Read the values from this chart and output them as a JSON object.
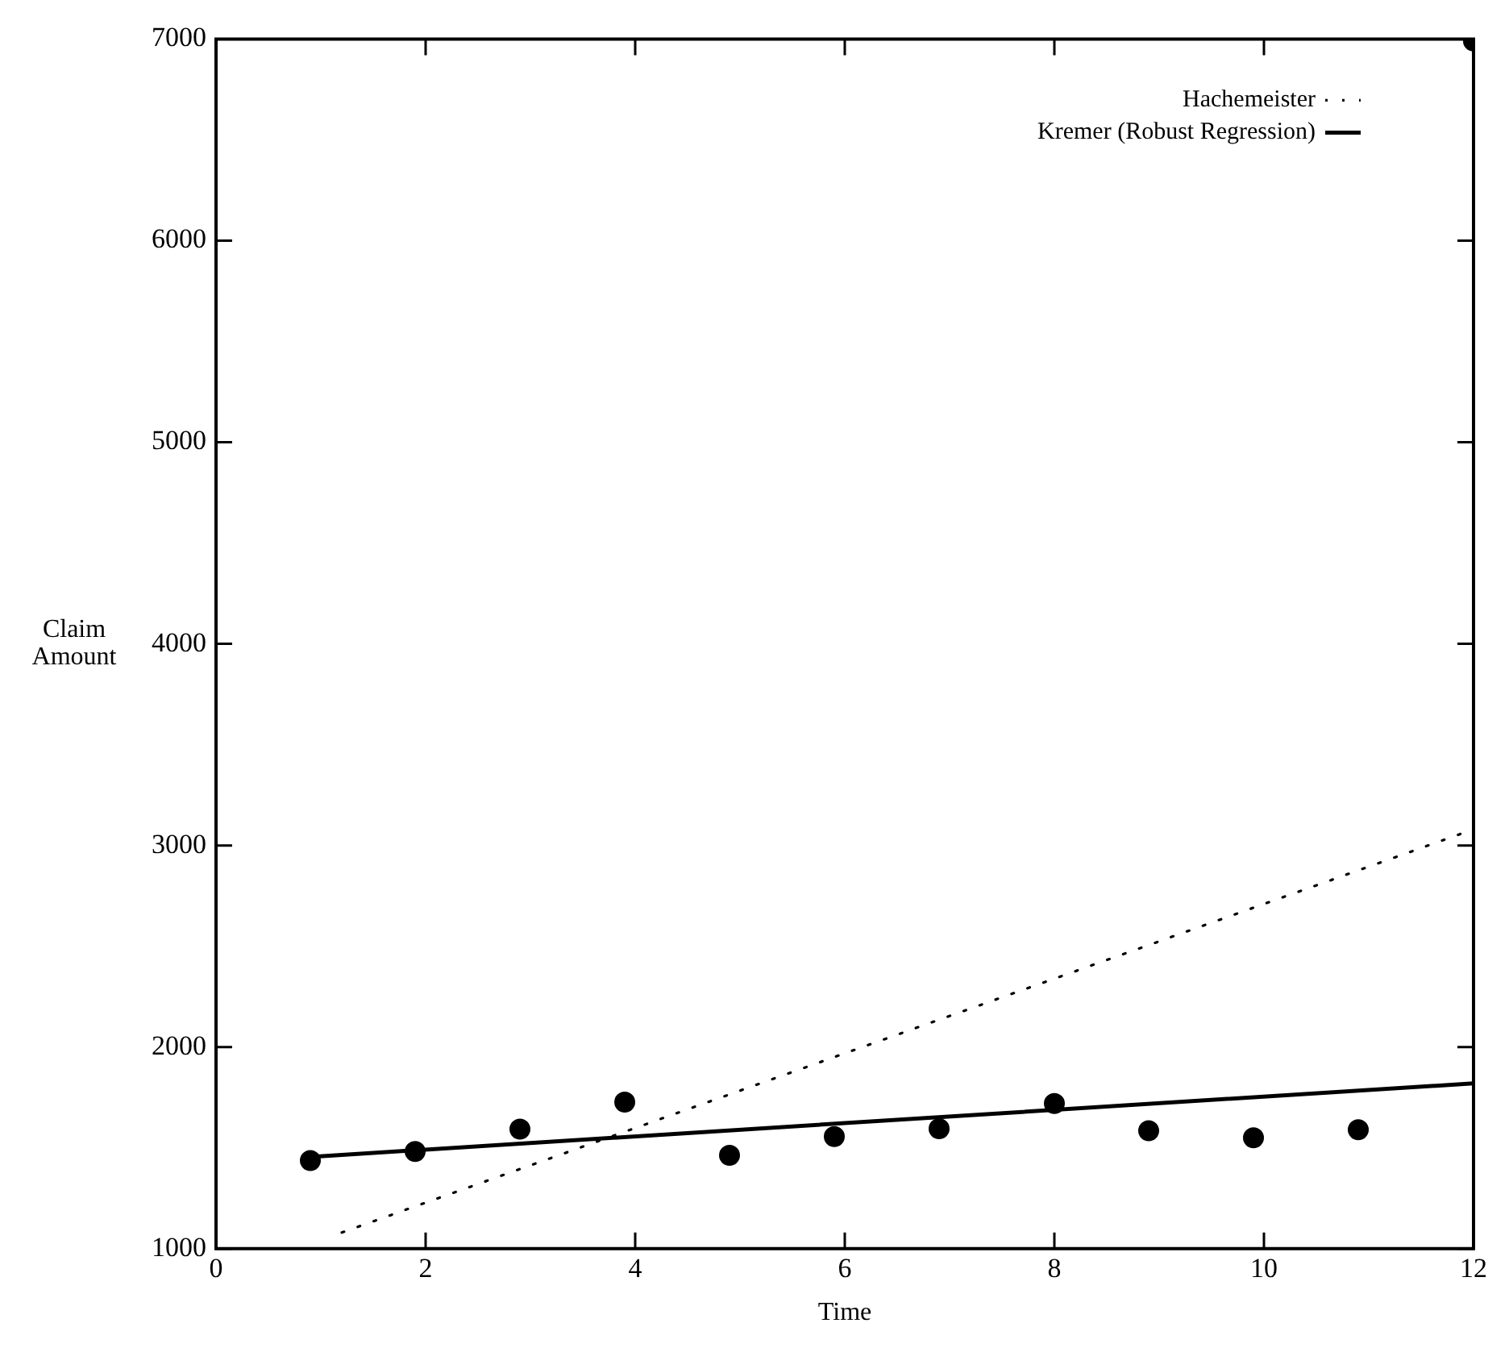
{
  "chart_data": {
    "type": "scatter",
    "xlabel": "Time",
    "ylabel": "Claim Amount",
    "xlim": [
      0,
      12
    ],
    "xticks": [
      0,
      2,
      4,
      6,
      8,
      10,
      12
    ],
    "ylim": [
      1000,
      7000
    ],
    "yticks": [
      1000,
      2000,
      3000,
      4000,
      5000,
      6000,
      7000
    ],
    "grid": false,
    "legend": "top right",
    "marker": "circle",
    "x": [
      0.9,
      1.9,
      2.9,
      3.9,
      4.9,
      5.9,
      6.9,
      8.0,
      8.9,
      9.9,
      10.9,
      12
    ],
    "series": [
      {
        "color": "#000000",
        "values": [
          1437,
          1482,
          1593,
          1727,
          1463,
          1556,
          1595,
          1720,
          1585,
          1550,
          1590,
          6990
        ]
      },
      {
        "type": "line",
        "name": "Hachemeister",
        "color": "#000000",
        "line_style": "dotted",
        "marker": "none",
        "x": [
          1.2,
          12
        ],
        "values": [
          1080,
          3080
        ]
      },
      {
        "type": "line",
        "name": "Kremer (Robust Regression)",
        "color": "#000000",
        "line_style": "solid",
        "marker": "none",
        "x": [
          0.9,
          12
        ],
        "values": [
          1455,
          1820
        ]
      }
    ]
  }
}
